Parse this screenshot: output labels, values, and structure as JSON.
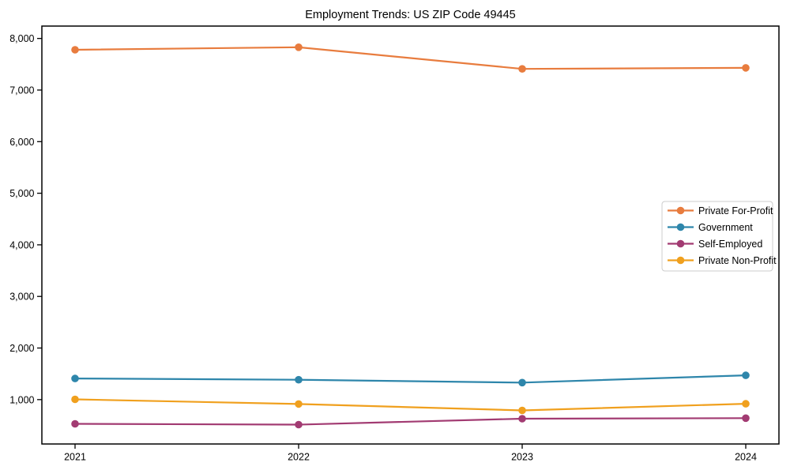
{
  "window": {
    "background": "#ffffff"
  },
  "chart_data": {
    "type": "line",
    "title": "Employment Trends: US ZIP Code 49445",
    "x_categories": [
      "2021",
      "2022",
      "2023",
      "2024"
    ],
    "series": [
      {
        "name": "Private For-Profit",
        "color": "#E87C3E",
        "values": [
          7780,
          7830,
          7410,
          7430
        ]
      },
      {
        "name": "Government",
        "color": "#2E86AB",
        "values": [
          1410,
          1385,
          1330,
          1470
        ]
      },
      {
        "name": "Self-Employed",
        "color": "#A23B72",
        "values": [
          530,
          515,
          630,
          640
        ]
      },
      {
        "name": "Private Non-Profit",
        "color": "#F0A01E",
        "values": [
          1005,
          915,
          790,
          920
        ]
      }
    ],
    "xlabel": "",
    "ylabel": "",
    "ylim": [
      140,
      8240
    ],
    "yticks": [
      1000,
      2000,
      3000,
      4000,
      5000,
      6000,
      7000,
      8000
    ],
    "ytick_labels": [
      "1,000",
      "2,000",
      "3,000",
      "4,000",
      "5,000",
      "6,000",
      "7,000",
      "8,000"
    ],
    "grid": false,
    "legend": {
      "position": "center-right",
      "entries": [
        "Private For-Profit",
        "Government",
        "Self-Employed",
        "Private Non-Profit"
      ]
    }
  }
}
